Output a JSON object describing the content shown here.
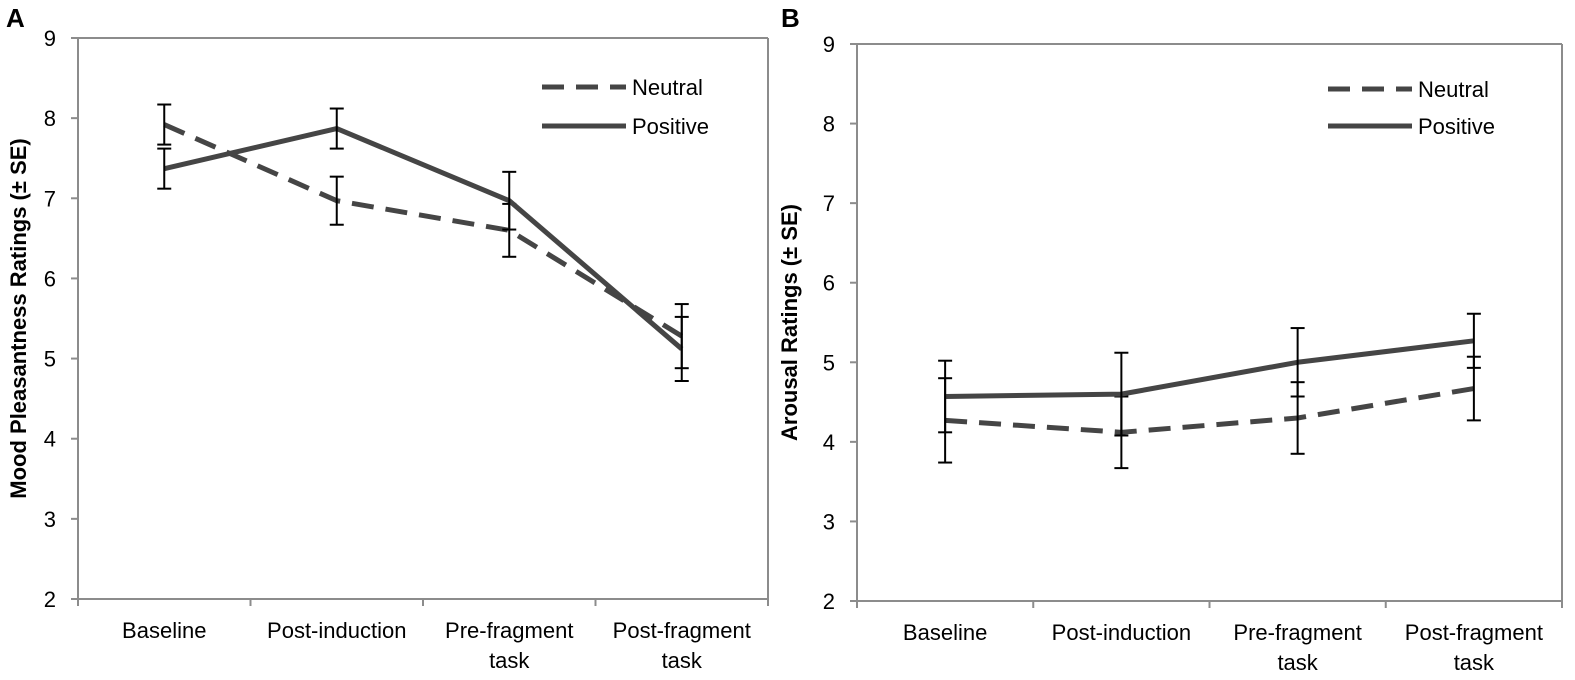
{
  "figure": {
    "panels": [
      "A",
      "B"
    ]
  },
  "chart_data": [
    {
      "type": "line",
      "panel": "A",
      "title": "",
      "xlabel": "",
      "ylabel": "Mood Pleasantness Ratings (± SE)",
      "categories": [
        [
          "Baseline"
        ],
        [
          "Post-induction"
        ],
        [
          "Pre-fragment",
          "task"
        ],
        [
          "Post-fragment",
          "task"
        ]
      ],
      "ylim": [
        2,
        9
      ],
      "yticks": [
        2,
        3,
        4,
        5,
        6,
        7,
        8,
        9
      ],
      "grid": false,
      "legend": "top-right",
      "series": [
        {
          "name": "Neutral",
          "style": "dashed",
          "values": [
            7.92,
            6.97,
            6.6,
            5.28
          ],
          "se": [
            0.25,
            0.3,
            0.33,
            0.4
          ],
          "color": "#454545"
        },
        {
          "name": "Positive",
          "style": "solid",
          "values": [
            7.37,
            7.87,
            6.97,
            5.12
          ],
          "se": [
            0.25,
            0.25,
            0.36,
            0.4
          ],
          "color": "#454545"
        }
      ]
    },
    {
      "type": "line",
      "panel": "B",
      "title": "",
      "xlabel": "",
      "ylabel": "Arousal Ratings (± SE)",
      "categories": [
        [
          "Baseline"
        ],
        [
          "Post-induction"
        ],
        [
          "Pre-fragment",
          "task"
        ],
        [
          "Post-fragment",
          "task"
        ]
      ],
      "ylim": [
        2,
        9
      ],
      "yticks": [
        2,
        3,
        4,
        5,
        6,
        7,
        8,
        9
      ],
      "grid": false,
      "legend": "top-right",
      "series": [
        {
          "name": "Neutral",
          "style": "dashed",
          "values": [
            4.27,
            4.12,
            4.3,
            4.67
          ],
          "se": [
            0.53,
            0.45,
            0.45,
            0.4
          ],
          "color": "#454545"
        },
        {
          "name": "Positive",
          "style": "solid",
          "values": [
            4.57,
            4.6,
            5.0,
            5.27
          ],
          "se": [
            0.45,
            0.52,
            0.43,
            0.34
          ],
          "color": "#454545"
        }
      ]
    }
  ]
}
